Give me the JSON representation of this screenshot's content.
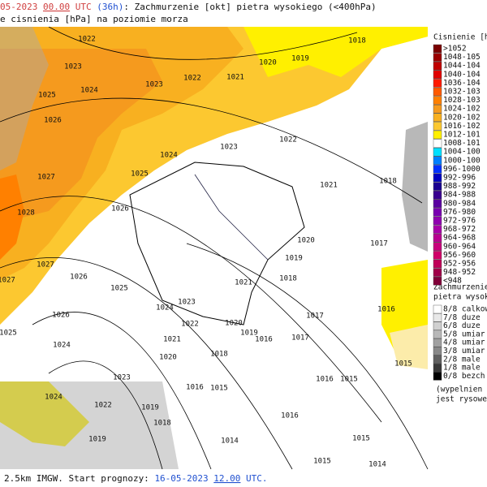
{
  "header": {
    "date": "05-2023",
    "time": "00.00",
    "utc": "UTC",
    "lead": "(36h)",
    "title": ": Zachmurzenie [okt] pietra wysokiego (<400hPa)",
    "subtitle": "e cisnienia [hPa] na poziomie morza"
  },
  "footer": {
    "prefix": "2.5km IMGW. Start prognozy:",
    "start_date": "16-05-2023",
    "start_time": "12.00",
    "suffix": "UTC."
  },
  "pressure_legend": {
    "title": "Cisnienie [hP",
    "entries": [
      {
        "label": ">1052",
        "color": "#7a0000"
      },
      {
        "label": "1048-105",
        "color": "#9a0000"
      },
      {
        "label": "1044-104",
        "color": "#c00000"
      },
      {
        "label": "1040-104",
        "color": "#e00000"
      },
      {
        "label": "1036-104",
        "color": "#ff1a00"
      },
      {
        "label": "1032-103",
        "color": "#ff5a00"
      },
      {
        "label": "1028-103",
        "color": "#ff8000"
      },
      {
        "label": "1024-102",
        "color": "#f59a1e"
      },
      {
        "label": "1020-102",
        "color": "#f8b020"
      },
      {
        "label": "1016-102",
        "color": "#fcc830"
      },
      {
        "label": "1012-101",
        "color": "#fff000"
      },
      {
        "label": "1008-101",
        "color": "#ffffff"
      },
      {
        "label": "1004-100",
        "color": "#00e0ff"
      },
      {
        "label": "1000-100",
        "color": "#0080ff"
      },
      {
        "label": "996-1000",
        "color": "#0030ff"
      },
      {
        "label": "992-996",
        "color": "#0000c0"
      },
      {
        "label": "988-992",
        "color": "#1a0090"
      },
      {
        "label": "984-988",
        "color": "#3a0090"
      },
      {
        "label": "980-984",
        "color": "#5a00a0"
      },
      {
        "label": "976-980",
        "color": "#7800b0"
      },
      {
        "label": "972-976",
        "color": "#9000b0"
      },
      {
        "label": "968-972",
        "color": "#a800a8"
      },
      {
        "label": "964-968",
        "color": "#b80090"
      },
      {
        "label": "960-964",
        "color": "#c8007c"
      },
      {
        "label": "956-960",
        "color": "#d00068"
      },
      {
        "label": "952-956",
        "color": "#c00058"
      },
      {
        "label": "948-952",
        "color": "#a00048"
      },
      {
        "label": "<948",
        "color": "#800038"
      }
    ]
  },
  "cloud_legend": {
    "title": [
      "Zachmurzenie [",
      "pietra wysokie"
    ],
    "entries": [
      {
        "label": "8/8 calkow",
        "color": "#ffffff"
      },
      {
        "label": "7/8 duze",
        "color": "#e8e8e8"
      },
      {
        "label": "6/8 duze",
        "color": "#d0d0d0"
      },
      {
        "label": "5/8 umiar",
        "color": "#b8b8b8"
      },
      {
        "label": "4/8 umiar",
        "color": "#a0a0a0"
      },
      {
        "label": "3/8 umiar",
        "color": "#888888"
      },
      {
        "label": "2/8 male",
        "color": "#606060"
      },
      {
        "label": "1/8 male",
        "color": "#383838"
      },
      {
        "label": "0/8 bezch",
        "color": "#000000"
      }
    ],
    "note": [
      "(wypelnien",
      "jest rysowe"
    ]
  },
  "isobar_labels": [
    "1022",
    "1018",
    "1023",
    "1020",
    "1019",
    "1022",
    "1021",
    "1023",
    "1024",
    "1025",
    "1026",
    "1022",
    "1023",
    "1024",
    "1025",
    "1027",
    "1021",
    "1018",
    "1026",
    "1028",
    "1020",
    "1017",
    "1019",
    "1027",
    "1026",
    "1018",
    "1021",
    "1025",
    "1027",
    "1024",
    "1023",
    "1026",
    "1016",
    "1017",
    "1022",
    "1020",
    "1019",
    "1021",
    "1016",
    "1017",
    "1024",
    "1025",
    "1018",
    "1020",
    "1015",
    "1016",
    "1015",
    "1016",
    "1015",
    "1023",
    "1024",
    "1022",
    "1019",
    "1016",
    "1018",
    "1019",
    "1014",
    "1015",
    "1015",
    "1014"
  ]
}
